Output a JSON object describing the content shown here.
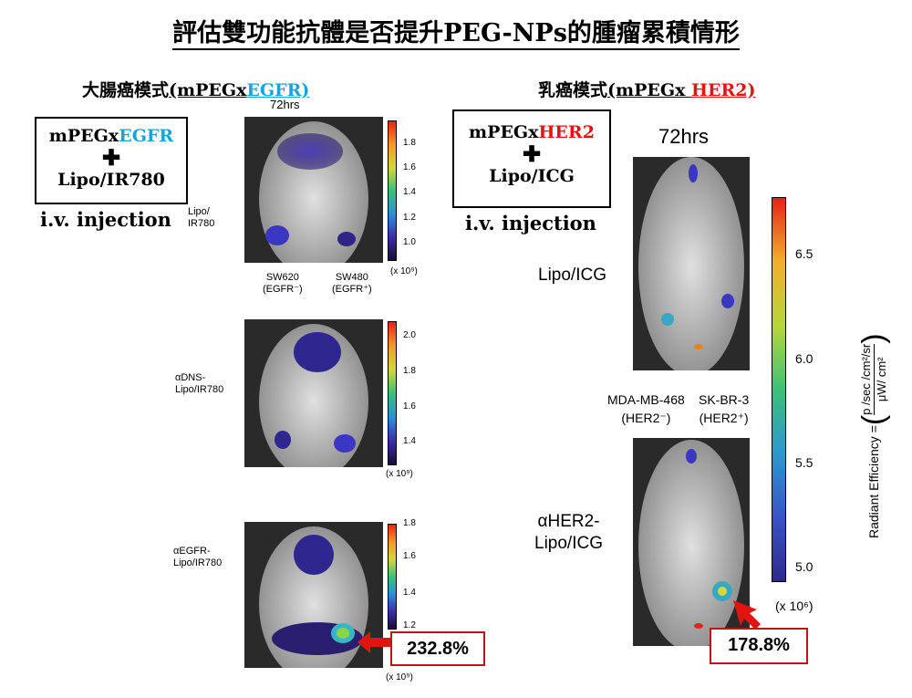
{
  "title": "評估雙功能抗體是否提升PEG-NPs的腫瘤累積情形",
  "left": {
    "section_prefix": "大腸癌模式",
    "section_label_a": "(mPEGx",
    "section_label_b": "EGFR)",
    "box": {
      "line1a": "mPEGx",
      "line1b": "EGFR",
      "cross": "✚",
      "line2": "Lipo/IR780"
    },
    "injection": "i.v. injection",
    "time": "72hrs",
    "rows": [
      {
        "label": "Lipo/\nIR780",
        "ticks": [
          "1.8",
          "1.6",
          "1.4",
          "1.2",
          "1.0"
        ],
        "unit": "(x 10⁹)"
      },
      {
        "label": "αDNS-\nLipo/IR780",
        "ticks": [
          "2.0",
          "1.8",
          "1.6",
          "1.4"
        ],
        "unit": "(x 10⁹)"
      },
      {
        "label": "αEGFR-\nLipo/IR780",
        "ticks": [
          "1.8",
          "1.6",
          "1.4",
          "1.2"
        ],
        "unit": "(x 10⁹)"
      }
    ],
    "tumor_left": "SW620\n(EGFR⁻)",
    "tumor_right": "SW480\n(EGFR⁺)",
    "percent": "232.8%"
  },
  "right": {
    "section_prefix": "乳癌模式",
    "section_label_a": "(mPEGx ",
    "section_label_b": "HER2)",
    "box": {
      "line1a": "mPEGx",
      "line1b": "HER2",
      "cross": "✚",
      "line2": "Lipo/ICG"
    },
    "injection": "i.v. injection",
    "time": "72hrs",
    "row1_label": "Lipo/ICG",
    "row2_label": "αHER2-\nLipo/ICG",
    "tumor_left": "MDA-MB-468\n(HER2⁻)",
    "tumor_right": "SK-BR-3\n(HER2⁺)",
    "colorbar_ticks": [
      "6.5",
      "6.0",
      "5.5",
      "5.0"
    ],
    "colorbar_unit": "(x 10⁶)",
    "axis_label": "Radiant Efficiency = ",
    "units_num": "p /sec /cm²/sr",
    "units_den": "μW/ cm²",
    "percent": "178.8%"
  },
  "colors": {
    "blue_highlight": "#1aa3d6",
    "red_highlight": "#e3140f",
    "callout_red": "#c0141a"
  }
}
